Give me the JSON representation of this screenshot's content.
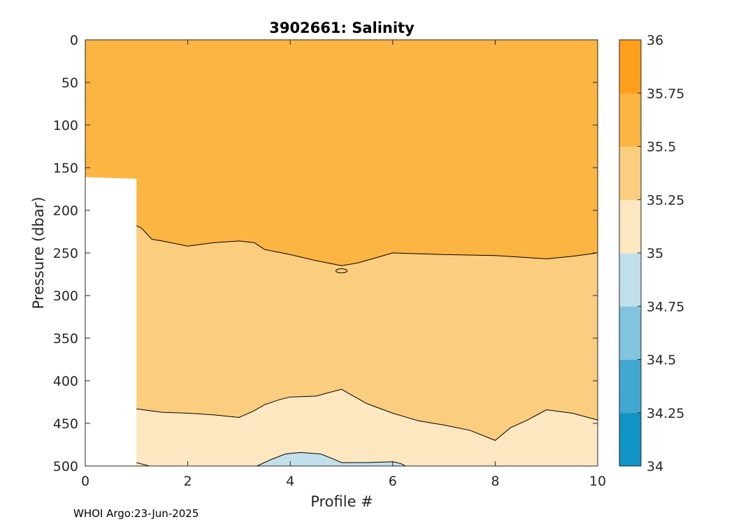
{
  "chart_data": {
    "type": "contour",
    "title": "3902661:  Salinity",
    "xlabel": "Profile #",
    "ylabel": "Pressure (dbar)",
    "xlim": [
      0,
      10
    ],
    "ylim": [
      500,
      0
    ],
    "x_ticks": [
      0,
      2,
      4,
      6,
      8,
      10
    ],
    "y_ticks": [
      0,
      50,
      100,
      150,
      200,
      250,
      300,
      350,
      400,
      450,
      500
    ],
    "y_reversed": true,
    "grid": false,
    "colorbar": {
      "levels": [
        34,
        34.25,
        34.5,
        34.75,
        35,
        35.25,
        35.5,
        35.75,
        36
      ],
      "tick_labels": [
        "34",
        "34.25",
        "34.5",
        "34.75",
        "35",
        "35.25",
        "35.5",
        "35.75",
        "36"
      ],
      "colors": [
        "#0f94c3",
        "#41a8d1",
        "#80c4de",
        "#c2e0eb",
        "#fde7c1",
        "#fbcd7f",
        "#fcb443",
        "#fd9f1a"
      ]
    },
    "no_data_region": {
      "x": [
        0,
        1
      ],
      "pressure_top": 163
    },
    "contour_35_5": {
      "x": [
        1,
        1.1,
        1.3,
        1.5,
        2,
        2.5,
        3,
        3.3,
        3.5,
        4,
        4.5,
        5,
        5.3,
        5.6,
        6,
        7,
        8,
        9,
        9.5,
        10
      ],
      "pressure": [
        218,
        221,
        234,
        236,
        242,
        238,
        236,
        238,
        246,
        252,
        259,
        265,
        262,
        257,
        250,
        252,
        253,
        257,
        254,
        250
      ]
    },
    "contour_35_25": {
      "x": [
        1,
        1.5,
        2,
        2.5,
        3,
        3.3,
        3.5,
        3.8,
        4,
        4.5,
        5,
        5.5,
        6,
        6.5,
        7,
        7.5,
        8,
        8.3,
        8.6,
        9,
        9.5,
        10
      ],
      "pressure": [
        433,
        437,
        438,
        440,
        443,
        435,
        428,
        422,
        419,
        418,
        410,
        427,
        438,
        447,
        452,
        458,
        470,
        455,
        447,
        434,
        438,
        446
      ]
    },
    "contour_35_0": {
      "x": [
        3.35,
        3.6,
        3.9,
        4.2,
        4.6,
        4.85,
        5,
        5.5,
        6,
        6.15,
        6.25
      ],
      "pressure": [
        500,
        493,
        486,
        484,
        486,
        492,
        496,
        496,
        495,
        497,
        500
      ]
    },
    "contour_35_0_edge": {
      "x": [
        1,
        1.25
      ],
      "pressure": [
        496,
        500
      ]
    },
    "small_closed_contour": {
      "x": 5,
      "pressure": 271,
      "level": 35.5
    }
  },
  "footer": {
    "text": "WHOI Argo:23-Jun-2025"
  }
}
